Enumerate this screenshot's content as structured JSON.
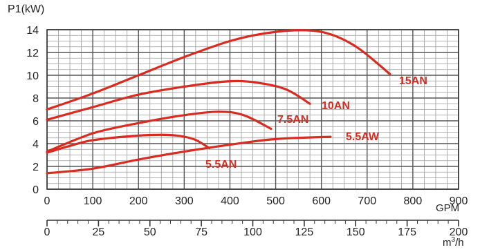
{
  "chart_data": {
    "type": "line",
    "ylabel": "P1(kW)",
    "xlabel": "GPM",
    "xlabel_secondary": "m³/h",
    "x_primary_range": [
      0,
      900
    ],
    "x_secondary_range": [
      0,
      200
    ],
    "ylim": [
      0,
      14
    ],
    "grid": true,
    "x_ticks": [
      "0",
      "100",
      "200",
      "300",
      "400",
      "500",
      "600",
      "700",
      "800",
      "900"
    ],
    "x_secondary_ticks": [
      "0",
      "25",
      "50",
      "75",
      "100",
      "125",
      "150",
      "175",
      "200"
    ],
    "y_ticks": [
      "0",
      "2",
      "4",
      "6",
      "8",
      "10",
      "12",
      "14"
    ],
    "line_color": "#d92b1f",
    "series": [
      {
        "name": "15AN",
        "points": [
          [
            0,
            7.0
          ],
          [
            100,
            8.4
          ],
          [
            200,
            10.0
          ],
          [
            300,
            11.6
          ],
          [
            400,
            13.0
          ],
          [
            480,
            13.7
          ],
          [
            560,
            13.95
          ],
          [
            620,
            13.6
          ],
          [
            680,
            12.4
          ],
          [
            750,
            10.1
          ]
        ]
      },
      {
        "name": "10AN",
        "points": [
          [
            0,
            6.1
          ],
          [
            100,
            7.2
          ],
          [
            200,
            8.3
          ],
          [
            300,
            9.0
          ],
          [
            390,
            9.45
          ],
          [
            450,
            9.4
          ],
          [
            520,
            8.8
          ],
          [
            575,
            7.5
          ]
        ]
      },
      {
        "name": "7.5AN",
        "points": [
          [
            0,
            3.3
          ],
          [
            100,
            4.9
          ],
          [
            200,
            5.8
          ],
          [
            300,
            6.5
          ],
          [
            375,
            6.8
          ],
          [
            430,
            6.5
          ],
          [
            490,
            5.3
          ]
        ]
      },
      {
        "name": "5.5AW",
        "points": [
          [
            0,
            1.4
          ],
          [
            100,
            1.8
          ],
          [
            200,
            2.6
          ],
          [
            300,
            3.3
          ],
          [
            400,
            3.9
          ],
          [
            500,
            4.4
          ],
          [
            620,
            4.6
          ]
        ]
      },
      {
        "name": "5.5AN",
        "points": [
          [
            0,
            3.2
          ],
          [
            50,
            3.8
          ],
          [
            100,
            4.3
          ],
          [
            200,
            4.7
          ],
          [
            270,
            4.75
          ],
          [
            320,
            4.4
          ],
          [
            355,
            3.6
          ]
        ]
      }
    ]
  }
}
